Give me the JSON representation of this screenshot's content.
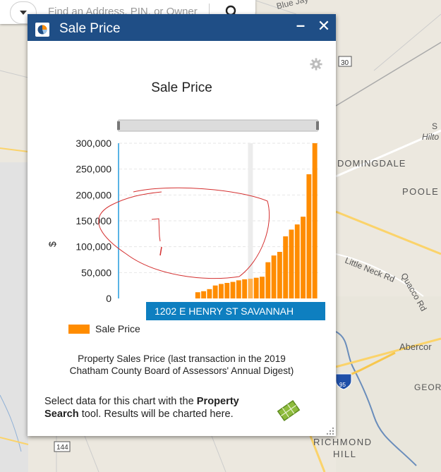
{
  "search": {
    "placeholder": "Find an Address, PIN, or Owner",
    "icon": "search-icon",
    "dropdown_icon": "caret-down-icon"
  },
  "map": {
    "labels": {
      "blue_jay": "Blue Jay",
      "route_30": "30",
      "domingdale": "DOMINGDALE",
      "poole": "POOLE",
      "hilton_partial": "Hilto",
      "s_partial": "S",
      "little_neck_rd": "Little Neck Rd",
      "quacco_rd": "Quacco Rd",
      "abercorn": "Abercor",
      "interstate_95": "95",
      "geor": "GEOR",
      "route_144": "144",
      "richmond_hill_1": "RICHMOND",
      "richmond_hill_2": "HILL"
    }
  },
  "widget": {
    "title": "Sale Price",
    "title_icon": "pie-chart-icon",
    "minimize_label": "–",
    "close_label": "✕",
    "settings_icon": "gear-icon",
    "caption_line1": "Property Sales Price (last transaction in the 2019",
    "caption_line2": "Chatham County Board of Assessors' Annual Digest)",
    "hint_prefix": "Select data for this chart with the ",
    "hint_bold1": "Property",
    "hint_bold2": "Search",
    "hint_suffix": " tool. Results will be charted here.",
    "tool_icon": "map-parcel-icon"
  },
  "chart_data": {
    "type": "bar",
    "title": "Sale Price",
    "ylabel": "$",
    "xlabel": "",
    "ylim": [
      0,
      300000
    ],
    "yticks": [
      "300,000",
      "250,000",
      "200,000",
      "150,000",
      "100,000",
      "50,000",
      "0"
    ],
    "legend": {
      "position": "bottom-left",
      "entries": [
        "Sale Price"
      ]
    },
    "grid": true,
    "bar_color": "#ff8c00",
    "highlight_color": "#ffb04d",
    "tooltip": "1202 E HENRY ST SAVANNAH",
    "highlight_index": 9,
    "series": [
      {
        "name": "Sale Price",
        "values": [
          0,
          0,
          0,
          0,
          0,
          0,
          0,
          0,
          0,
          0,
          0,
          0,
          0,
          12000,
          14000,
          18000,
          25000,
          28000,
          30000,
          32000,
          35000,
          37000,
          38000,
          40000,
          42000,
          70000,
          83000,
          90000,
          120000,
          133000,
          143000,
          158000,
          240000,
          300000
        ]
      }
    ]
  }
}
